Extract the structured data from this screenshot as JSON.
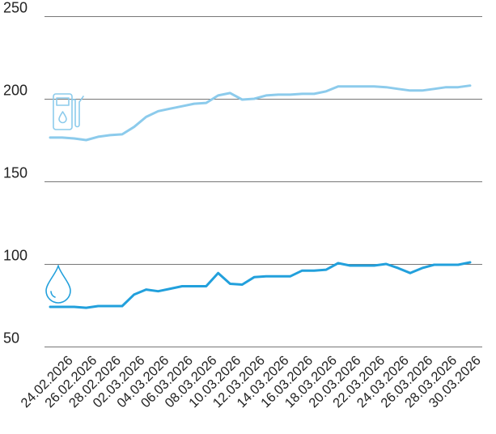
{
  "chart_data": {
    "type": "line",
    "title": "",
    "xlabel": "",
    "ylabel": "",
    "ylim": [
      50,
      250
    ],
    "yticks": [
      50,
      100,
      150,
      200,
      250
    ],
    "grid": "horizontal",
    "legend": "icons",
    "x_tick_labels": [
      "24.02.2026",
      "26.02.2026",
      "28.02.2026",
      "02.03.2026",
      "04.03.2026",
      "06.03.2026",
      "08.03.2026",
      "10.03.2026",
      "12.03.2026",
      "14.03.2026",
      "16.03.2026",
      "18.03.2026",
      "20.03.2026",
      "22.03.2026",
      "24.03.2026",
      "26.03.2026",
      "28.03.2026",
      "30.03.2026"
    ],
    "x": [
      "23.02.2026",
      "24.02.2026",
      "25.02.2026",
      "26.02.2026",
      "27.02.2026",
      "28.02.2026",
      "01.03.2026",
      "02.03.2026",
      "03.03.2026",
      "04.03.2026",
      "05.03.2026",
      "06.03.2026",
      "07.03.2026",
      "08.03.2026",
      "09.03.2026",
      "10.03.2026",
      "11.03.2026",
      "12.03.2026",
      "13.03.2026",
      "14.03.2026",
      "15.03.2026",
      "16.03.2026",
      "17.03.2026",
      "18.03.2026",
      "19.03.2026",
      "20.03.2026",
      "21.03.2026",
      "22.03.2026",
      "23.03.2026",
      "24.03.2026",
      "25.03.2026",
      "26.03.2026",
      "27.03.2026",
      "28.03.2026",
      "29.03.2026",
      "30.03.2026"
    ],
    "series": [
      {
        "icon": "fuel-pump-icon",
        "color": "#8ccbec",
        "values": [
          176.5,
          176.5,
          176,
          175,
          177,
          178,
          178.5,
          183,
          189,
          192.5,
          194,
          195.5,
          197,
          197.5,
          202,
          203.5,
          199.5,
          200,
          202,
          202.5,
          202.5,
          203,
          203,
          204.5,
          207.5,
          207.5,
          207.5,
          207.5,
          207,
          206,
          205,
          205,
          206,
          207,
          207,
          208
        ]
      },
      {
        "icon": "water-drop-icon",
        "color": "#22a0dc",
        "values": [
          74,
          74,
          74,
          73.5,
          74.5,
          74.5,
          74.5,
          81.5,
          84.5,
          83.5,
          85,
          86.5,
          86.5,
          86.5,
          94.5,
          88,
          87.5,
          92,
          92.5,
          92.5,
          92.5,
          96,
          96,
          96.5,
          100.5,
          99,
          99,
          99,
          100,
          97.5,
          94.5,
          97.5,
          99.5,
          99.5,
          99.5,
          101
        ]
      }
    ]
  }
}
